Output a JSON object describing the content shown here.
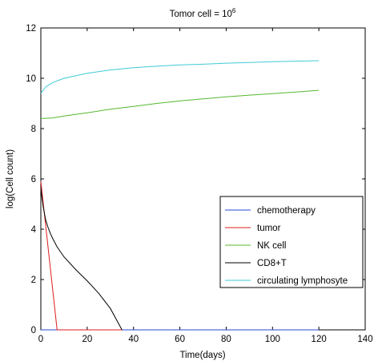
{
  "chart_data": {
    "type": "line",
    "title": {
      "base": "Tomor cell = 10",
      "exponent": "6"
    },
    "xlabel": "Time(days)",
    "ylabel": "log(Cell count)",
    "xlim": [
      0,
      140
    ],
    "ylim": [
      0,
      12
    ],
    "xticks": [
      0,
      20,
      40,
      60,
      80,
      100,
      120,
      140
    ],
    "yticks": [
      0,
      2,
      4,
      6,
      8,
      10,
      12
    ],
    "grid": false,
    "legend_position": "center-right",
    "series": [
      {
        "name": "chemotherapy",
        "color": "#2747d9",
        "x": [
          0,
          2,
          5,
          10,
          20,
          40,
          60,
          80,
          100,
          120
        ],
        "y": [
          0,
          0,
          0,
          0,
          0,
          0,
          0,
          0,
          0,
          0
        ]
      },
      {
        "name": "tumor",
        "color": "#e01b1b",
        "x": [
          0,
          7,
          8,
          20,
          35
        ],
        "y": [
          5.9,
          0,
          0,
          0,
          0
        ]
      },
      {
        "name": "NK cell",
        "color": "#55b82f",
        "x": [
          0,
          5,
          10,
          20,
          30,
          40,
          50,
          60,
          70,
          80,
          90,
          100,
          110,
          120
        ],
        "y": [
          8.4,
          8.42,
          8.5,
          8.63,
          8.77,
          8.88,
          9.0,
          9.1,
          9.18,
          9.26,
          9.33,
          9.39,
          9.45,
          9.52
        ]
      },
      {
        "name": "CD8+T",
        "color": "#000000",
        "x": [
          0,
          1,
          2,
          3,
          4,
          5,
          7,
          10,
          15,
          20,
          25,
          30,
          35
        ],
        "y": [
          5.6,
          4.9,
          4.4,
          4.1,
          3.85,
          3.65,
          3.3,
          2.9,
          2.4,
          1.95,
          1.45,
          0.85,
          0.0
        ]
      },
      {
        "name": "circulating lymphosyte",
        "color": "#3fcad8",
        "x": [
          0,
          2,
          5,
          10,
          15,
          20,
          30,
          40,
          50,
          60,
          70,
          80,
          90,
          100,
          110,
          120
        ],
        "y": [
          9.4,
          9.65,
          9.83,
          10.0,
          10.1,
          10.2,
          10.33,
          10.42,
          10.48,
          10.53,
          10.56,
          10.6,
          10.63,
          10.66,
          10.68,
          10.7
        ]
      }
    ]
  }
}
